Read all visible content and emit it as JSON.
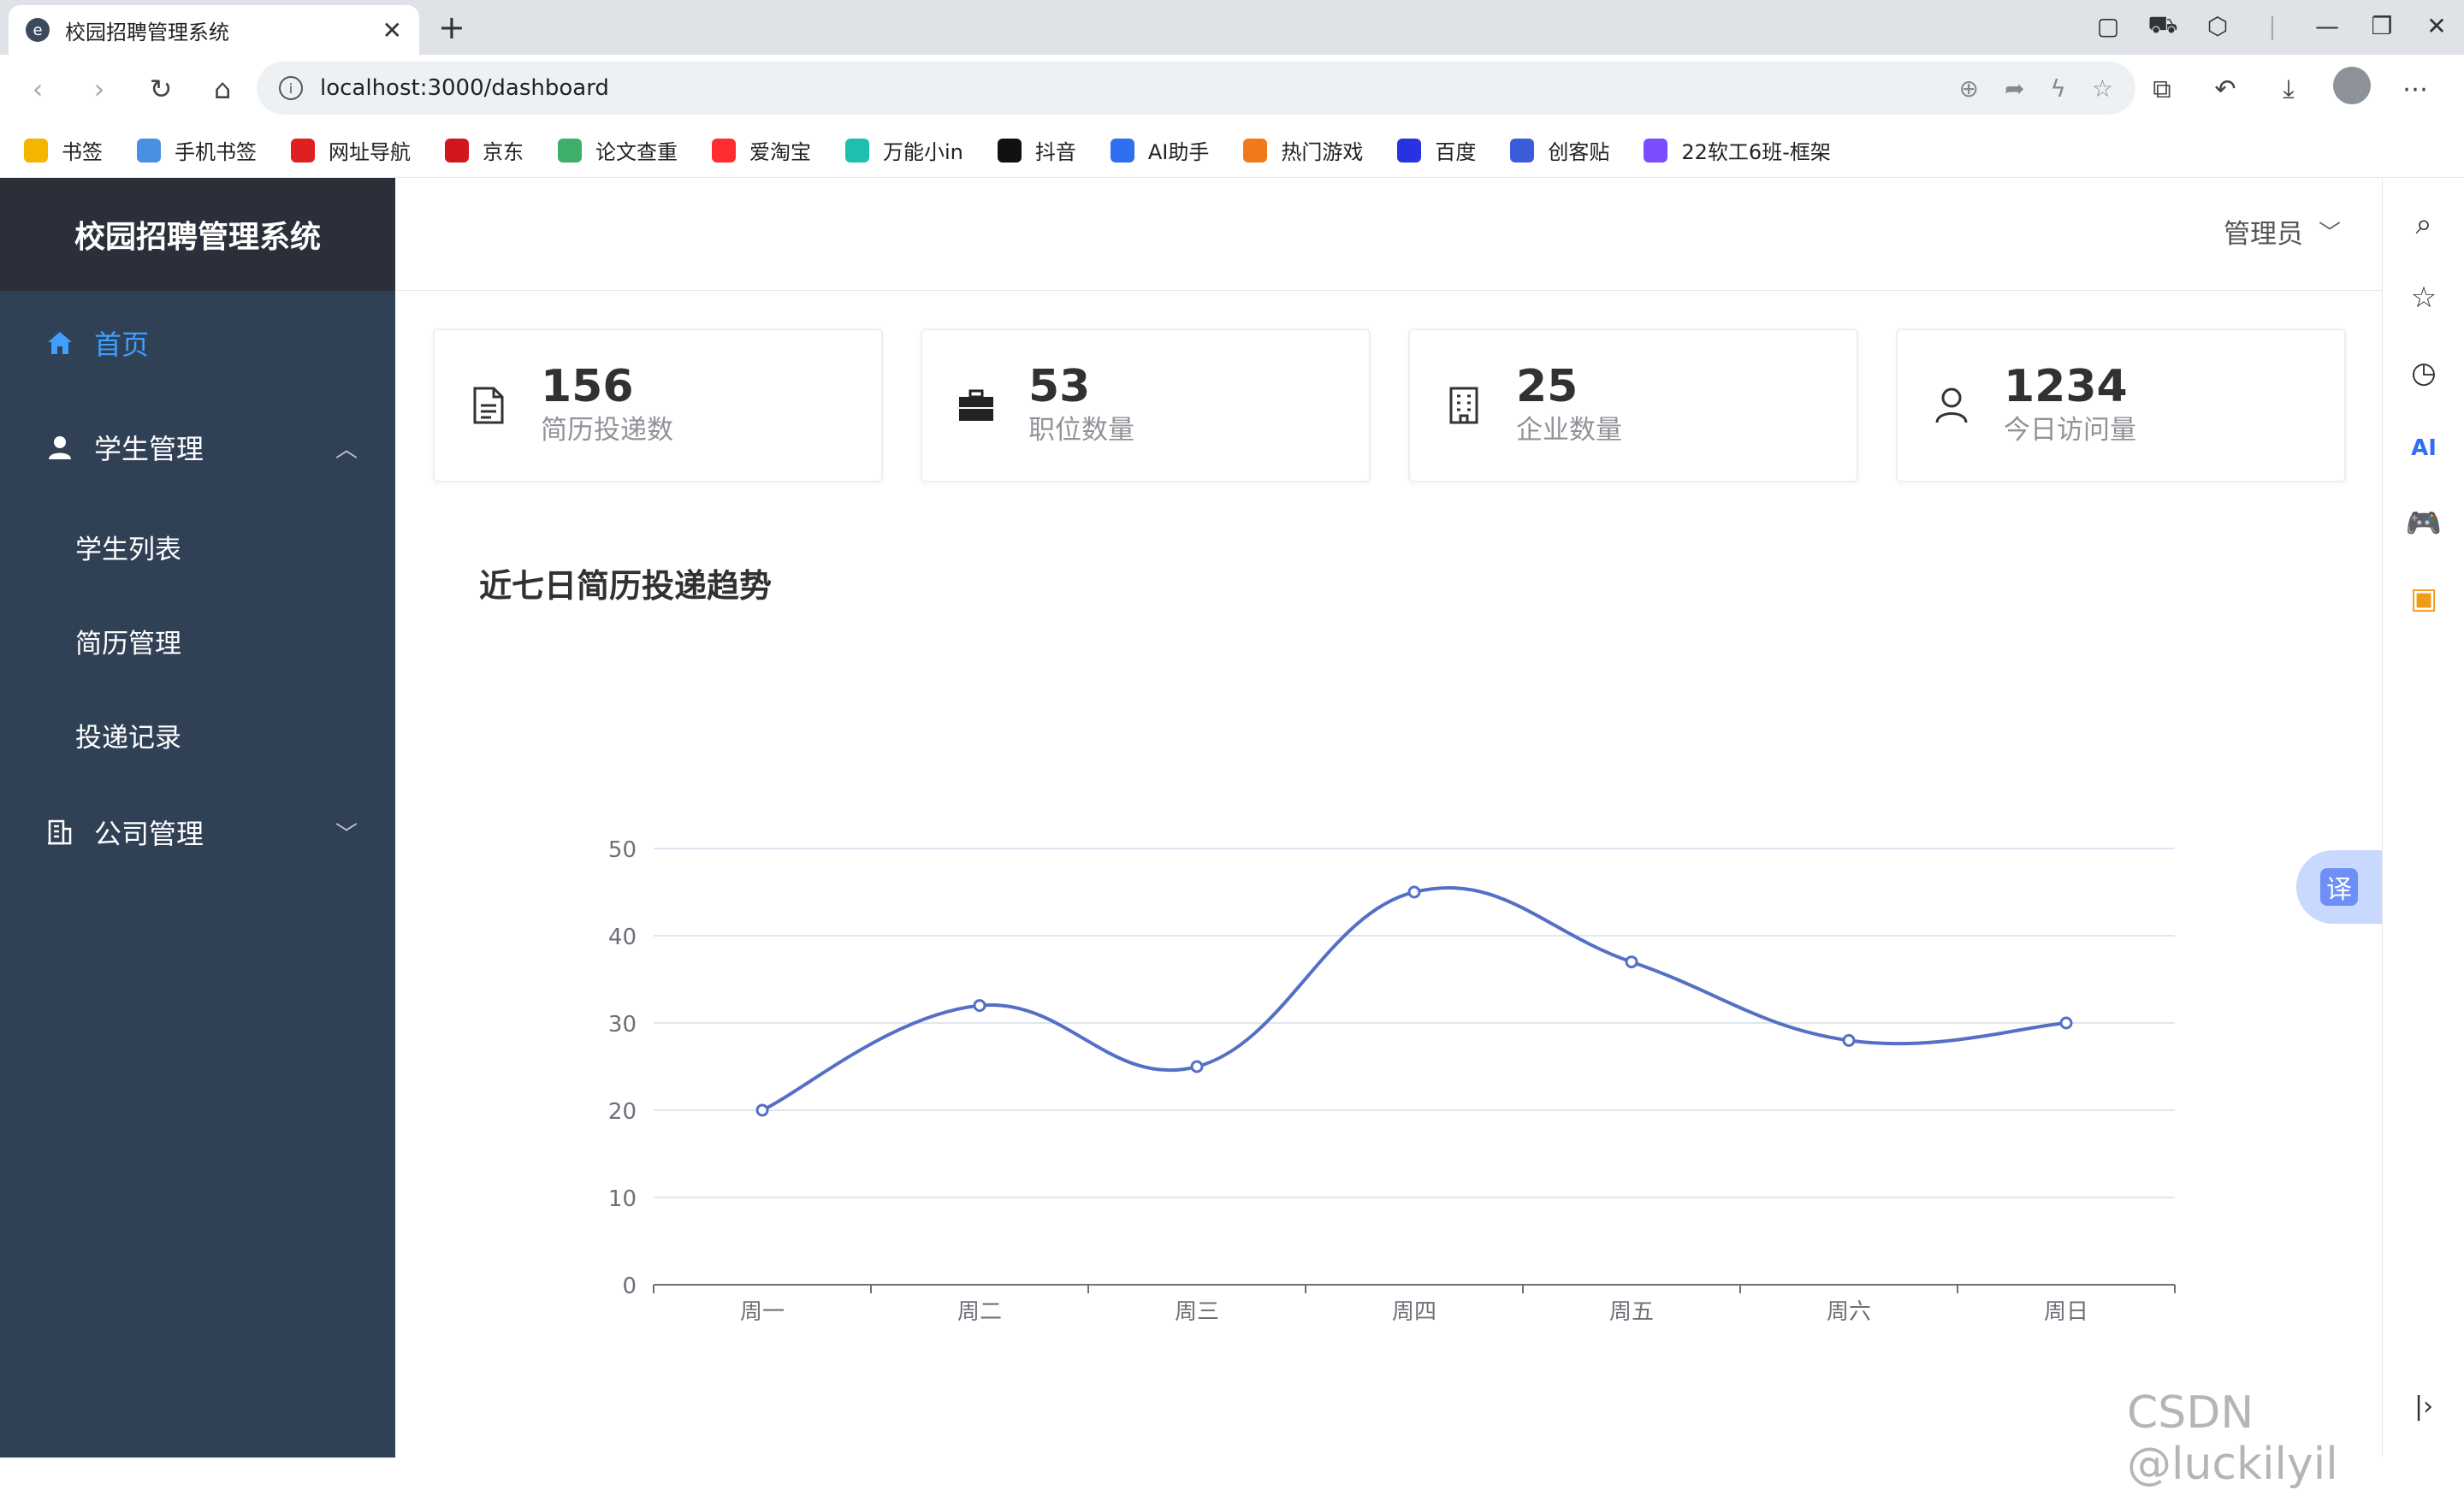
{
  "browser": {
    "tab_title": "校园招聘管理系统",
    "url": "localhost:3000/dashboard",
    "bookmarks": [
      {
        "label": "书签",
        "color": "#f5b400",
        "icon": "star-icon"
      },
      {
        "label": "手机书签",
        "color": "#4a90e2",
        "icon": "phone-icon"
      },
      {
        "label": "网址导航",
        "color": "#e02020",
        "icon": "nav-icon"
      },
      {
        "label": "京东",
        "color": "#d2161d",
        "icon": "jd-icon"
      },
      {
        "label": "论文查重",
        "color": "#3fae6a",
        "icon": "pp-icon"
      },
      {
        "label": "爱淘宝",
        "color": "#ff2d2d",
        "icon": "taobao-icon"
      },
      {
        "label": "万能小in",
        "color": "#1fbfb0",
        "icon": "xiaoin-icon"
      },
      {
        "label": "抖音",
        "color": "#111111",
        "icon": "douyin-icon"
      },
      {
        "label": "AI助手",
        "color": "#2f6ff2",
        "icon": "ai-icon"
      },
      {
        "label": "热门游戏",
        "color": "#f07a1a",
        "icon": "game-icon"
      },
      {
        "label": "百度",
        "color": "#2932e1",
        "icon": "baidu-icon"
      },
      {
        "label": "创客贴",
        "color": "#3b5bdb",
        "icon": "chuangketie-icon"
      },
      {
        "label": "22软工6班-框架",
        "color": "#7c4dff",
        "icon": "doc-icon"
      }
    ]
  },
  "sidebar": {
    "logo": "校园招聘管理系统",
    "home": "首页",
    "student_mgmt": "学生管理",
    "sub_items": [
      "学生列表",
      "简历管理",
      "投递记录"
    ],
    "company_mgmt": "公司管理"
  },
  "header": {
    "user": "管理员"
  },
  "stats": [
    {
      "value": "156",
      "label": "简历投递数",
      "icon": "document-icon"
    },
    {
      "value": "53",
      "label": "职位数量",
      "icon": "briefcase-icon"
    },
    {
      "value": "25",
      "label": "企业数量",
      "icon": "building-icon"
    },
    {
      "value": "1234",
      "label": "今日访问量",
      "icon": "user-icon"
    }
  ],
  "chart_data": {
    "type": "line",
    "title": "近七日简历投递趋势",
    "categories": [
      "周一",
      "周二",
      "周三",
      "周四",
      "周五",
      "周六",
      "周日"
    ],
    "values": [
      20,
      32,
      25,
      45,
      37,
      28,
      30
    ],
    "ylim": [
      0,
      50
    ],
    "yticks": [
      0,
      10,
      20,
      30,
      40,
      50
    ],
    "smooth": true,
    "color": "#5470c6",
    "grid": true
  },
  "translate_label": "译",
  "watermark": "CSDN @luckilyil"
}
